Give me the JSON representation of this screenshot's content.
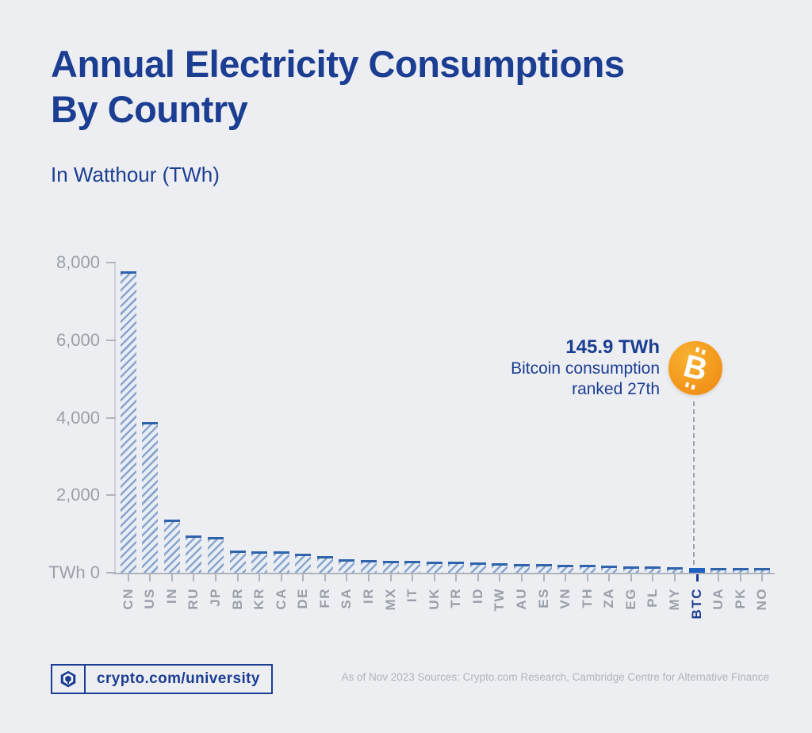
{
  "header": {
    "title": "Annual Electricity Consumptions By Country",
    "subtitle": "In Watthour (TWh)"
  },
  "chart_data": {
    "type": "bar",
    "title": "Annual Electricity Consumptions By Country",
    "subtitle": "In Watthour (TWh)",
    "unit": "TWh",
    "xlabel": "",
    "ylabel": "TWh",
    "ylim": [
      0,
      8000
    ],
    "grid": false,
    "yticks": [
      {
        "value": 8000,
        "label": "8,000"
      },
      {
        "value": 6000,
        "label": "6,000"
      },
      {
        "value": 4000,
        "label": "4,000"
      },
      {
        "value": 2000,
        "label": "2,000"
      },
      {
        "value": 0,
        "label": "TWh 0"
      }
    ],
    "categories": [
      "CN",
      "US",
      "IN",
      "RU",
      "JP",
      "BR",
      "KR",
      "CA",
      "DE",
      "FR",
      "SA",
      "IR",
      "MX",
      "IT",
      "UK",
      "TR",
      "ID",
      "TW",
      "AU",
      "ES",
      "VN",
      "TH",
      "ZA",
      "EG",
      "PL",
      "MY",
      "BTC",
      "UA",
      "PK",
      "NO"
    ],
    "values": [
      7800,
      3900,
      1400,
      980,
      940,
      600,
      575,
      570,
      515,
      450,
      370,
      345,
      330,
      320,
      315,
      300,
      290,
      275,
      255,
      245,
      235,
      220,
      215,
      190,
      180,
      170,
      145.9,
      140,
      135,
      130
    ],
    "highlight": {
      "category": "BTC",
      "value": 145.9,
      "rank": 27
    }
  },
  "annotation": {
    "value_label": "145.9 TWh",
    "line2": "Bitcoin consumption",
    "line3": "ranked 27th",
    "icon": "bitcoin-icon"
  },
  "footer": {
    "brand": "crypto.com/university",
    "source": "As of Nov 2023 Sources: Crypto.com Research, Cambridge Centre for Alternative Finance"
  },
  "colors": {
    "navy": "#1c3e92",
    "bar_stripe": "#8aa5cb",
    "bar_background": "#e9eef6",
    "bar_cap": "#2f63ac",
    "btc_bar": "#2161c4",
    "axis_gray": "#b0b4bb",
    "label_gray": "#9aa0a9",
    "bitcoin_orange": "#f39a1d",
    "page_background": "#edeef2"
  }
}
